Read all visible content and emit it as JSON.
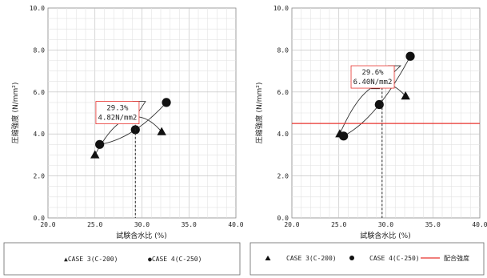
{
  "chart_data": [
    {
      "type": "scatter",
      "xlabel": "試験含水比 (%)",
      "ylabel": "圧縮強度 (N/mm²)",
      "xlim": [
        20,
        40
      ],
      "ylim": [
        0,
        10
      ],
      "x_ticks": [
        "20.0",
        "25.0",
        "30.0",
        "35.0",
        "40.0"
      ],
      "y_ticks": [
        "0.0",
        "2.0",
        "4.0",
        "6.0",
        "8.0",
        "10.0"
      ],
      "grid": true,
      "series": [
        {
          "name": "CASE 3(C-200)",
          "marker": "triangle",
          "x": [
            25.0,
            28.9,
            32.1
          ],
          "y": [
            3.0,
            4.8,
            4.1
          ]
        },
        {
          "name": "CASE 4(C-250)",
          "marker": "circle",
          "x": [
            25.5,
            29.3,
            32.6
          ],
          "y": [
            3.5,
            4.2,
            5.5
          ]
        }
      ],
      "annotation": {
        "line1": "29.3%",
        "line2": "4.82N/mm2",
        "x": 29.3,
        "y": 4.82,
        "box_x": 25.1,
        "box_y": 5.55
      },
      "legend": {
        "position": "bottom",
        "items": [
          "▲CASE 3(C-200)",
          "●CASE 4(C-250)"
        ]
      }
    },
    {
      "type": "scatter",
      "xlabel": "試験含水比 (%)",
      "ylabel": "圧縮強度 (N/mm²)",
      "xlim": [
        20,
        40
      ],
      "ylim": [
        0,
        10
      ],
      "x_ticks": [
        "20.0",
        "25.0",
        "30.0",
        "35.0",
        "40.0"
      ],
      "y_ticks": [
        "0.0",
        "2.0",
        "4.0",
        "6.0",
        "8.0",
        "10.0"
      ],
      "grid": true,
      "reference_line": {
        "label": "配合強度",
        "y": 4.5,
        "color": "#e8332e"
      },
      "series": [
        {
          "name": "CASE 3(C-200)",
          "marker": "triangle",
          "x": [
            25.1,
            28.9,
            32.1
          ],
          "y": [
            4.0,
            6.3,
            5.8
          ]
        },
        {
          "name": "CASE 4(C-250)",
          "marker": "circle",
          "x": [
            25.5,
            29.3,
            32.6
          ],
          "y": [
            3.9,
            5.4,
            7.7
          ]
        }
      ],
      "annotation": {
        "line1": "29.6%",
        "line2": "6.40N/mm2",
        "x": 29.6,
        "y": 6.4,
        "box_x": 26.3,
        "box_y": 7.25
      },
      "legend": {
        "position": "bottom",
        "items": [
          "▲ CASE 3(C-200)",
          "● CASE 4(C-250)",
          "配合強度"
        ]
      }
    }
  ]
}
